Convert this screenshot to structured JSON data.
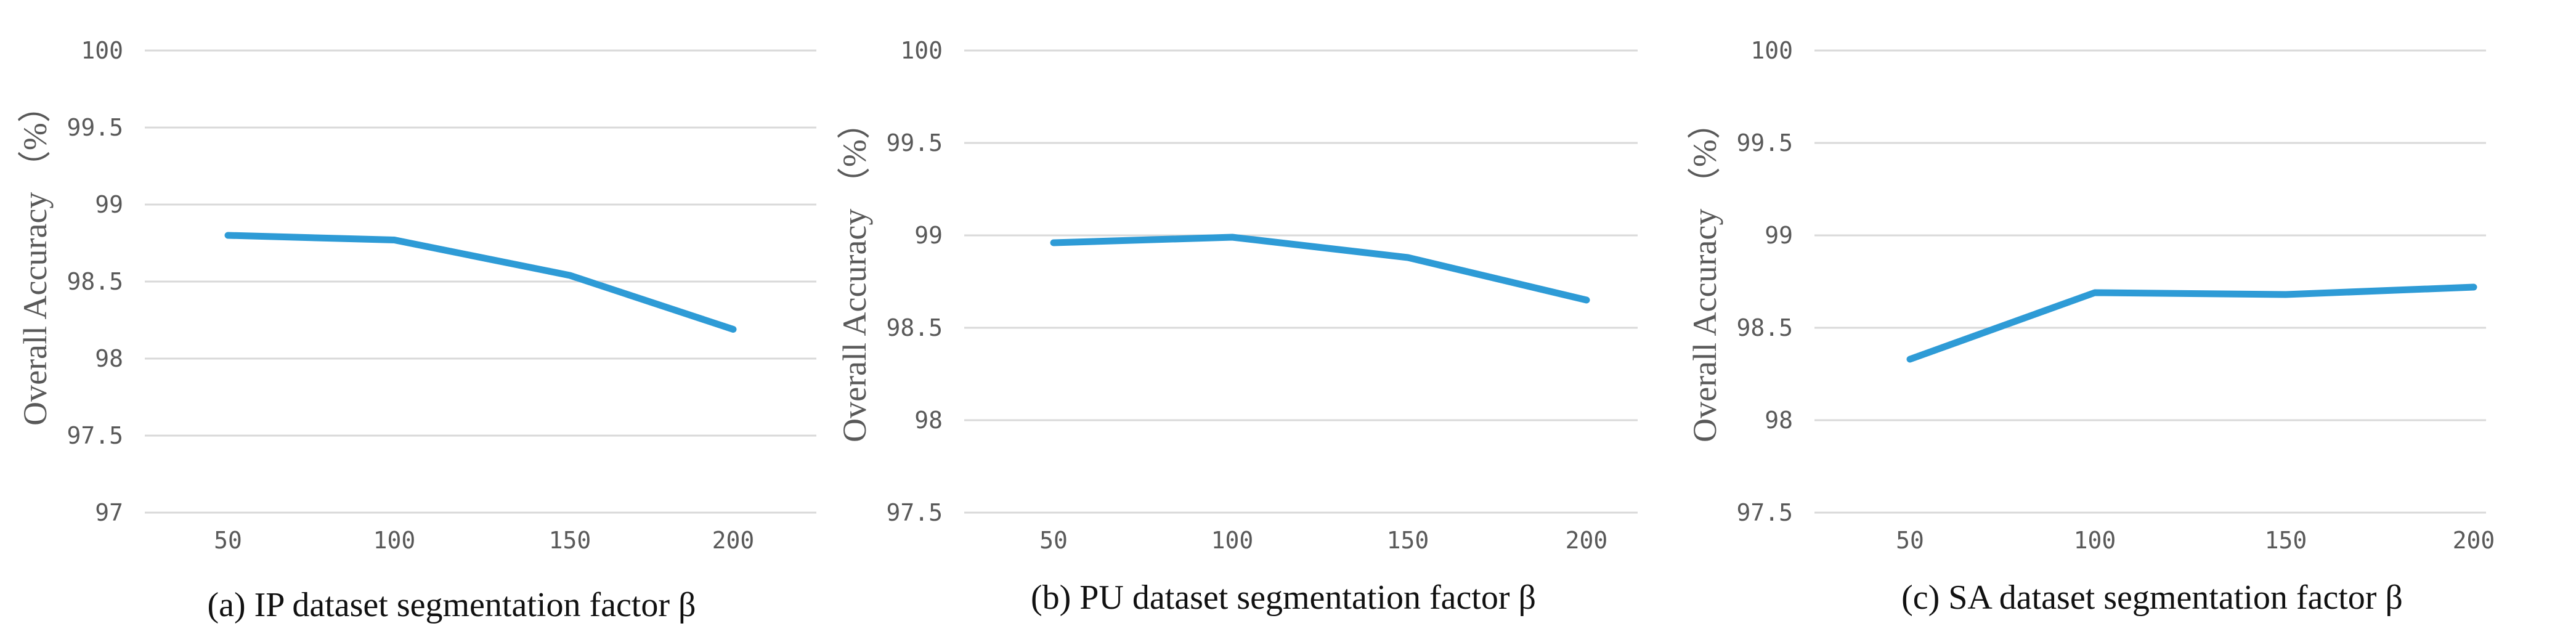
{
  "colors": {
    "line": "#2e9bd6",
    "grid": "#d9d9d9",
    "text": "#595959",
    "caption": "#111111"
  },
  "chart_data": [
    {
      "type": "line",
      "title": "(a) IP dataset segmentation factor β",
      "xlabel": "",
      "ylabel": "Overall Accuracy （%）",
      "categories": [
        "50",
        "100",
        "150",
        "200"
      ],
      "series": [
        {
          "name": "IP",
          "values": [
            98.8,
            98.77,
            98.54,
            98.19
          ]
        }
      ],
      "ylim": [
        97,
        100
      ],
      "yticks": [
        "97",
        "97.5",
        "98",
        "98.5",
        "99",
        "99.5",
        "100"
      ],
      "grid": true
    },
    {
      "type": "line",
      "title": "(b) PU dataset segmentation factor β",
      "xlabel": "",
      "ylabel": "Overall Accuracy （%）",
      "categories": [
        "50",
        "100",
        "150",
        "200"
      ],
      "series": [
        {
          "name": "PU",
          "values": [
            98.96,
            98.99,
            98.88,
            98.65
          ]
        }
      ],
      "ylim": [
        97.5,
        100
      ],
      "yticks": [
        "97.5",
        "98",
        "98.5",
        "99",
        "99.5",
        "100"
      ],
      "grid": true
    },
    {
      "type": "line",
      "title": "(c) SA dataset segmentation factor β",
      "xlabel": "",
      "ylabel": "Overall Accuracy （%）",
      "categories": [
        "50",
        "100",
        "150",
        "200"
      ],
      "series": [
        {
          "name": "SA",
          "values": [
            98.33,
            98.69,
            98.68,
            98.72
          ]
        }
      ],
      "ylim": [
        97.5,
        100
      ],
      "yticks": [
        "97.5",
        "98",
        "98.5",
        "99",
        "99.5",
        "100"
      ],
      "grid": true
    }
  ]
}
